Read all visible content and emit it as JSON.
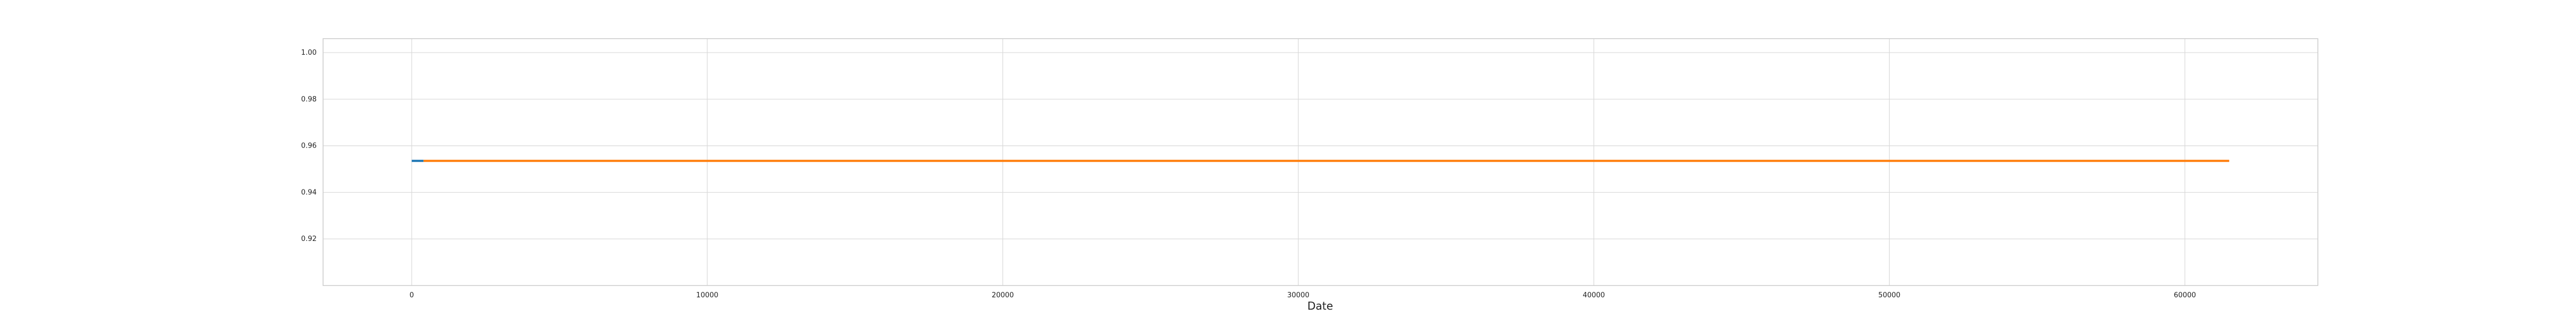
{
  "chart_data": {
    "type": "line",
    "title": "",
    "xlabel": "Date",
    "ylabel": "",
    "xlim": [
      -3000,
      64500
    ],
    "ylim": [
      0.9,
      1.006
    ],
    "x_ticks": [
      0,
      10000,
      20000,
      30000,
      40000,
      50000,
      60000
    ],
    "y_ticks": [
      0.92,
      0.94,
      0.96,
      0.98,
      1.0
    ],
    "x_tick_labels": [
      "0",
      "10000",
      "20000",
      "30000",
      "40000",
      "50000",
      "60000"
    ],
    "y_tick_labels": [
      "0.92",
      "0.94",
      "0.96",
      "0.98",
      "1.00"
    ],
    "grid": true,
    "legend": "none",
    "series": [
      {
        "color": "#1f77b4",
        "x": [
          0,
          400
        ],
        "y": [
          0.9535,
          0.9535
        ]
      },
      {
        "color": "#ff7f0e",
        "x": [
          400,
          61500
        ],
        "y": [
          0.9535,
          0.9535
        ]
      }
    ]
  },
  "colors": {
    "grid": "#d9d9d9",
    "axes_border": "#cccccc",
    "background": "#ffffff"
  }
}
